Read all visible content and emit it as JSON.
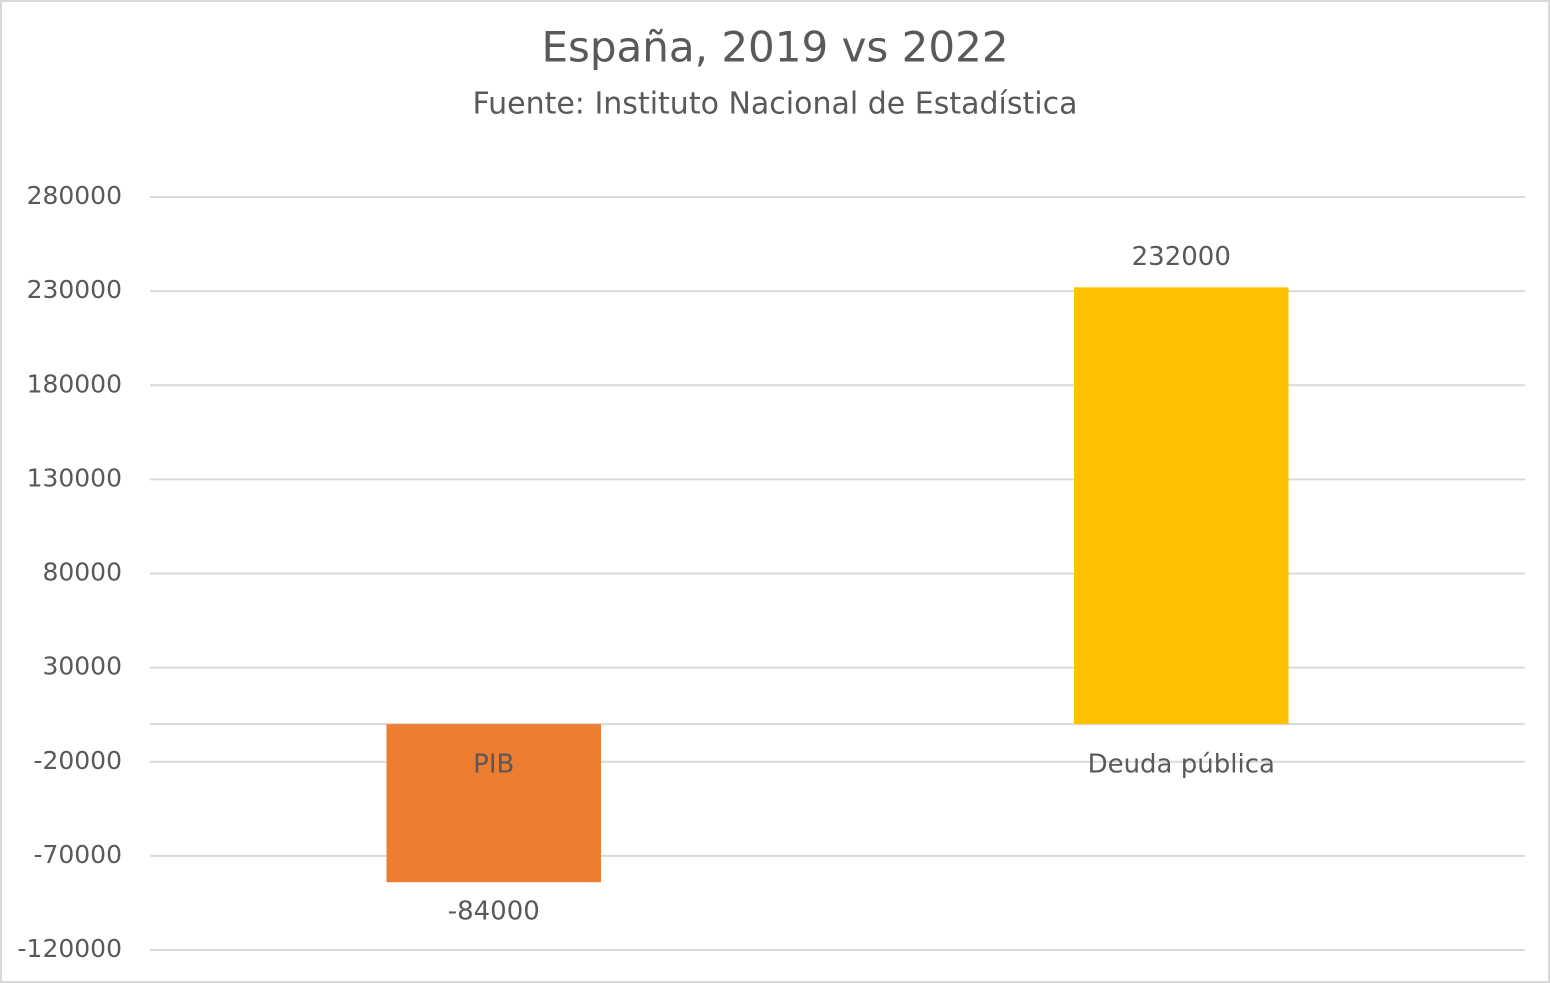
{
  "chart_data": {
    "type": "bar",
    "title": "España, 2019 vs 2022",
    "subtitle": "Fuente: Instituto Nacional de Estadística",
    "categories": [
      "PIB",
      "Deuda pública"
    ],
    "values": [
      -84000,
      232000
    ],
    "colors": [
      "#ed7d31",
      "#ffc000"
    ],
    "ylim": [
      -120000,
      280000
    ],
    "yticks": [
      -120000,
      -70000,
      -20000,
      30000,
      80000,
      130000,
      180000,
      230000,
      280000
    ],
    "grid": true
  }
}
